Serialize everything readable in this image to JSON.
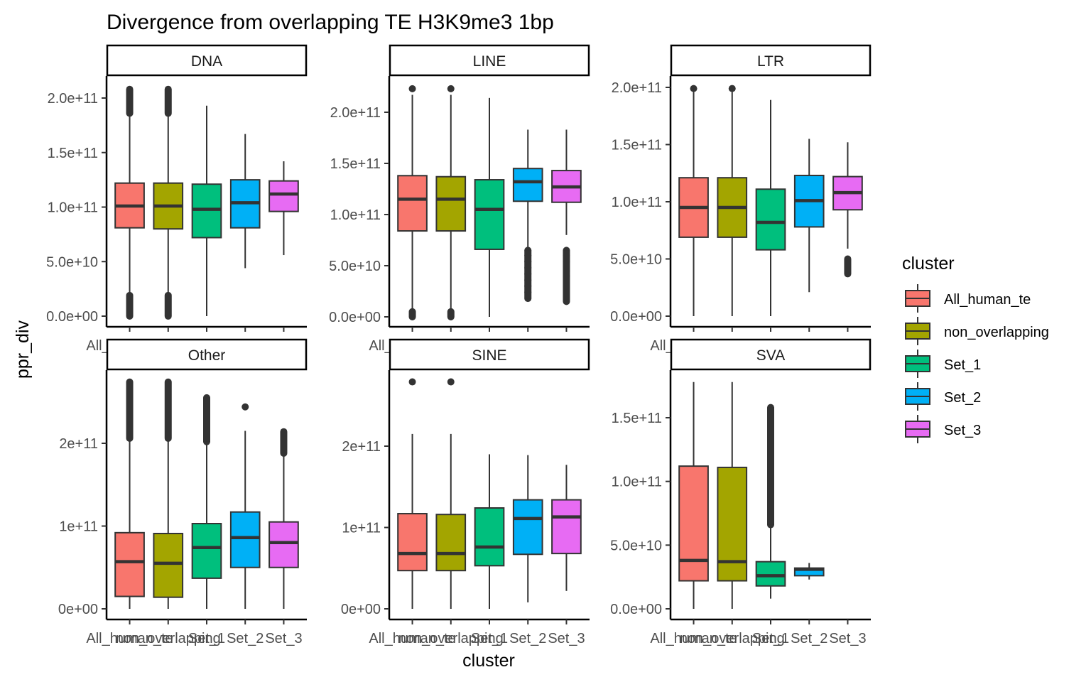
{
  "chart_data": {
    "type": "boxplot",
    "title": "Divergence from overlapping TE H3K9me3 1bp",
    "xlabel": "cluster",
    "ylabel": "ppr_div",
    "categories": [
      "All_human_te",
      "non_overlapping",
      "Set_1",
      "Set_2",
      "Set_3"
    ],
    "colors": {
      "All_human_te": "#F8766D",
      "non_overlapping": "#A3A500",
      "Set_1": "#00BF7D",
      "Set_2": "#00B0F6",
      "Set_3": "#E76BF3"
    },
    "legend": {
      "title": "cluster",
      "position": "right",
      "entries": [
        "All_human_te",
        "non_overlapping",
        "Set_1",
        "Set_2",
        "Set_3"
      ]
    },
    "facets": [
      {
        "name": "DNA",
        "ylim": [
          -5000000000.0,
          220000000000.0
        ],
        "yticks": [
          0,
          50000000000.0,
          100000000000.0,
          150000000000.0,
          200000000000.0
        ],
        "ytick_labels": [
          "0.0e+00",
          "5.0e+10",
          "1.0e+11",
          "1.5e+11",
          "2.0e+11"
        ],
        "boxes": [
          {
            "cluster": "All_human_te",
            "min": 18000000000.0,
            "q1": 81000000000.0,
            "median": 101000000000.0,
            "q3": 122000000000.0,
            "max": 184000000000.0,
            "outliers_low": [
              0,
              19000000000.0
            ],
            "outliers_high": [
              186000000000.0,
              208000000000.0
            ]
          },
          {
            "cluster": "non_overlapping",
            "min": 18000000000.0,
            "q1": 80000000000.0,
            "median": 101000000000.0,
            "q3": 122000000000.0,
            "max": 184000000000.0,
            "outliers_low": [
              0,
              19000000000.0
            ],
            "outliers_high": [
              186000000000.0,
              208000000000.0
            ]
          },
          {
            "cluster": "Set_1",
            "min": 0.0,
            "q1": 72000000000.0,
            "median": 98000000000.0,
            "q3": 121000000000.0,
            "max": 193000000000.0,
            "outliers_low": [],
            "outliers_high": []
          },
          {
            "cluster": "Set_2",
            "min": 44000000000.0,
            "q1": 81000000000.0,
            "median": 104000000000.0,
            "q3": 125000000000.0,
            "max": 167000000000.0,
            "outliers_low": [],
            "outliers_high": []
          },
          {
            "cluster": "Set_3",
            "min": 56000000000.0,
            "q1": 96000000000.0,
            "median": 112000000000.0,
            "q3": 124000000000.0,
            "max": 142000000000.0,
            "outliers_low": [],
            "outliers_high": []
          }
        ]
      },
      {
        "name": "LINE",
        "ylim": [
          -5000000000.0,
          240000000000.0
        ],
        "yticks": [
          0,
          50000000000.0,
          100000000000.0,
          150000000000.0,
          200000000000.0
        ],
        "ytick_labels": [
          "0.0e+00",
          "5.0e+10",
          "1.0e+11",
          "1.5e+11",
          "2.0e+11"
        ],
        "boxes": [
          {
            "cluster": "All_human_te",
            "min": 6000000000.0,
            "q1": 84000000000.0,
            "median": 115000000000.0,
            "q3": 138000000000.0,
            "max": 217000000000.0,
            "outliers_low": [
              0,
              5000000000.0
            ],
            "outliers_high": [
              223000000000.0
            ]
          },
          {
            "cluster": "non_overlapping",
            "min": 6000000000.0,
            "q1": 84000000000.0,
            "median": 115000000000.0,
            "q3": 137000000000.0,
            "max": 217000000000.0,
            "outliers_low": [
              0,
              5000000000.0
            ],
            "outliers_high": [
              223000000000.0
            ]
          },
          {
            "cluster": "Set_1",
            "min": 0.0,
            "q1": 66000000000.0,
            "median": 105000000000.0,
            "q3": 134000000000.0,
            "max": 214000000000.0,
            "outliers_low": [],
            "outliers_high": []
          },
          {
            "cluster": "Set_2",
            "min": 67000000000.0,
            "q1": 113000000000.0,
            "median": 132000000000.0,
            "q3": 145000000000.0,
            "max": 183000000000.0,
            "outliers_low": [
              18000000000.0,
              24000000000.0,
              30000000000.0,
              36000000000.0,
              42000000000.0,
              48000000000.0,
              54000000000.0,
              60000000000.0,
              65000000000.0
            ],
            "outliers_high": []
          },
          {
            "cluster": "Set_3",
            "min": 80000000000.0,
            "q1": 112000000000.0,
            "median": 127000000000.0,
            "q3": 143000000000.0,
            "max": 183000000000.0,
            "outliers_low": [
              15000000000.0,
              40000000000.0,
              45000000000.0,
              54000000000.0,
              60000000000.0,
              65000000000.0
            ],
            "outliers_high": []
          }
        ]
      },
      {
        "name": "LTR",
        "ylim": [
          -5000000000.0,
          205000000000.0
        ],
        "yticks": [
          0,
          50000000000.0,
          100000000000.0,
          150000000000.0,
          200000000000.0
        ],
        "ytick_labels": [
          "0.0e+00",
          "5.0e+10",
          "1.0e+11",
          "1.5e+11",
          "2.0e+11"
        ],
        "boxes": [
          {
            "cluster": "All_human_te",
            "min": 0.0,
            "q1": 69000000000.0,
            "median": 95000000000.0,
            "q3": 121000000000.0,
            "max": 196000000000.0,
            "outliers_low": [],
            "outliers_high": [
              199000000000.0
            ]
          },
          {
            "cluster": "non_overlapping",
            "min": 0.0,
            "q1": 69000000000.0,
            "median": 95000000000.0,
            "q3": 121000000000.0,
            "max": 196000000000.0,
            "outliers_low": [],
            "outliers_high": [
              199000000000.0
            ]
          },
          {
            "cluster": "Set_1",
            "min": 0.0,
            "q1": 58000000000.0,
            "median": 82000000000.0,
            "q3": 111000000000.0,
            "max": 189000000000.0,
            "outliers_low": [],
            "outliers_high": []
          },
          {
            "cluster": "Set_2",
            "min": 21000000000.0,
            "q1": 78000000000.0,
            "median": 101000000000.0,
            "q3": 123000000000.0,
            "max": 155000000000.0,
            "outliers_low": [],
            "outliers_high": []
          },
          {
            "cluster": "Set_3",
            "min": 59000000000.0,
            "q1": 93000000000.0,
            "median": 108000000000.0,
            "q3": 122000000000.0,
            "max": 152000000000.0,
            "outliers_low": [
              37000000000.0,
              50000000000.0
            ],
            "outliers_high": []
          }
        ]
      },
      {
        "name": "Other",
        "ylim": [
          -10000000000.0,
          290000000000.0
        ],
        "yticks": [
          0,
          100000000000.0,
          200000000000.0
        ],
        "ytick_labels": [
          "0e+00",
          "1e+11",
          "2e+11"
        ],
        "boxes": [
          {
            "cluster": "All_human_te",
            "min": 0.0,
            "q1": 15000000000.0,
            "median": 57000000000.0,
            "q3": 92000000000.0,
            "max": 204000000000.0,
            "outliers_low": [],
            "outliers_high": [
              206000000000.0,
              274000000000.0
            ]
          },
          {
            "cluster": "non_overlapping",
            "min": 0.0,
            "q1": 14000000000.0,
            "median": 55000000000.0,
            "q3": 91000000000.0,
            "max": 204000000000.0,
            "outliers_low": [],
            "outliers_high": [
              206000000000.0,
              274000000000.0
            ]
          },
          {
            "cluster": "Set_1",
            "min": 0.0,
            "q1": 37000000000.0,
            "median": 74000000000.0,
            "q3": 103000000000.0,
            "max": 200000000000.0,
            "outliers_low": [],
            "outliers_high": [
              202000000000.0,
              210000000000.0,
              218000000000.0,
              225000000000.0,
              230000000000.0,
              240000000000.0,
              255000000000.0
            ]
          },
          {
            "cluster": "Set_2",
            "min": 0.0,
            "q1": 50000000000.0,
            "median": 86000000000.0,
            "q3": 117000000000.0,
            "max": 215000000000.0,
            "outliers_low": [],
            "outliers_high": [
              244000000000.0
            ]
          },
          {
            "cluster": "Set_3",
            "min": 0.0,
            "q1": 50000000000.0,
            "median": 80000000000.0,
            "q3": 105000000000.0,
            "max": 186000000000.0,
            "outliers_low": [],
            "outliers_high": [
              188000000000.0,
              214000000000.0
            ]
          }
        ]
      },
      {
        "name": "SINE",
        "ylim": [
          -10000000000.0,
          290000000000.0
        ],
        "yticks": [
          0,
          100000000000.0,
          200000000000.0
        ],
        "ytick_labels": [
          "0e+00",
          "1e+11",
          "2e+11"
        ],
        "boxes": [
          {
            "cluster": "All_human_te",
            "min": 0.0,
            "q1": 47000000000.0,
            "median": 68000000000.0,
            "q3": 117000000000.0,
            "max": 215000000000.0,
            "outliers_low": [],
            "outliers_high": [
              279000000000.0
            ]
          },
          {
            "cluster": "non_overlapping",
            "min": 0.0,
            "q1": 47000000000.0,
            "median": 68000000000.0,
            "q3": 116000000000.0,
            "max": 215000000000.0,
            "outliers_low": [],
            "outliers_high": [
              279000000000.0
            ]
          },
          {
            "cluster": "Set_1",
            "min": 0.0,
            "q1": 53000000000.0,
            "median": 76000000000.0,
            "q3": 124000000000.0,
            "max": 190000000000.0,
            "outliers_low": [],
            "outliers_high": []
          },
          {
            "cluster": "Set_2",
            "min": 8000000000.0,
            "q1": 67000000000.0,
            "median": 111000000000.0,
            "q3": 134000000000.0,
            "max": 189000000000.0,
            "outliers_low": [],
            "outliers_high": []
          },
          {
            "cluster": "Set_3",
            "min": 22000000000.0,
            "q1": 68000000000.0,
            "median": 113000000000.0,
            "q3": 134000000000.0,
            "max": 177000000000.0,
            "outliers_low": [],
            "outliers_high": []
          }
        ]
      },
      {
        "name": "SVA",
        "ylim": [
          -10000000000.0,
          185000000000.0
        ],
        "yticks": [
          0,
          50000000000.0,
          100000000000.0,
          150000000000.0
        ],
        "ytick_labels": [
          "0.0e+00",
          "5.0e+10",
          "1.0e+11",
          "1.5e+11"
        ],
        "boxes": [
          {
            "cluster": "All_human_te",
            "min": 0.0,
            "q1": 22000000000.0,
            "median": 38000000000.0,
            "q3": 112000000000.0,
            "max": 178000000000.0,
            "outliers_low": [],
            "outliers_high": []
          },
          {
            "cluster": "non_overlapping",
            "min": 0.0,
            "q1": 22000000000.0,
            "median": 37000000000.0,
            "q3": 111000000000.0,
            "max": 178000000000.0,
            "outliers_low": [],
            "outliers_high": []
          },
          {
            "cluster": "Set_1",
            "min": 8000000000.0,
            "q1": 18000000000.0,
            "median": 26000000000.0,
            "q3": 37000000000.0,
            "max": 64000000000.0,
            "outliers_low": [],
            "outliers_high": [
              66000000000.0,
              78000000000.0,
              90000000000.0,
              100000000000.0,
              110000000000.0,
              120000000000.0,
              130000000000.0,
              140000000000.0,
              150000000000.0,
              158000000000.0
            ]
          },
          {
            "cluster": "Set_2",
            "min": 23000000000.0,
            "q1": 26000000000.0,
            "median": 31000000000.0,
            "q3": 32000000000.0,
            "max": 36000000000.0,
            "outliers_low": [],
            "outliers_high": []
          }
        ]
      }
    ]
  }
}
